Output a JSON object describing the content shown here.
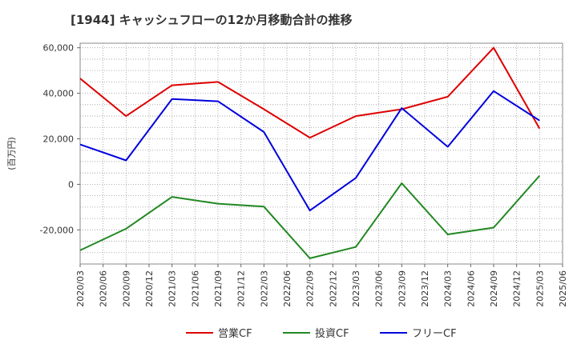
{
  "chart_data": {
    "type": "line",
    "title": "[1944]  キャッシュフローの12か月移動合計の推移",
    "ylabel": "(百万円)",
    "xlabel": "",
    "ylim": [
      -35000,
      62000
    ],
    "yticks": [
      60000,
      40000,
      20000,
      0,
      -20000
    ],
    "ytick_labels": [
      "60,000",
      "40,000",
      "20,000",
      "0",
      "-20,000"
    ],
    "grid": true,
    "legend_position": "bottom",
    "categories": [
      "2020/03",
      "2020/06",
      "2020/09",
      "2020/12",
      "2021/03",
      "2021/06",
      "2021/09",
      "2021/12",
      "2022/03",
      "2022/06",
      "2022/09",
      "2022/12",
      "2023/03",
      "2023/06",
      "2023/09",
      "2023/12",
      "2024/03",
      "2024/06",
      "2024/09",
      "2024/12",
      "2025/03",
      "2025/06"
    ],
    "series": [
      {
        "name": "営業CF",
        "color": "#dd0000",
        "values": [
          46500,
          null,
          30000,
          null,
          43500,
          null,
          45000,
          null,
          33000,
          null,
          20500,
          null,
          30000,
          null,
          33000,
          null,
          38500,
          null,
          60000,
          null,
          24500,
          null
        ]
      },
      {
        "name": "投資CF",
        "color": "#228822",
        "values": [
          -29000,
          null,
          -19500,
          null,
          -5500,
          null,
          -8500,
          null,
          -9800,
          null,
          -32500,
          null,
          -27500,
          null,
          500,
          null,
          -22000,
          null,
          -19000,
          null,
          3800,
          null
        ]
      },
      {
        "name": "フリーCF",
        "color": "#0000dd",
        "values": [
          17500,
          null,
          10500,
          null,
          37500,
          null,
          36500,
          null,
          23000,
          null,
          -11500,
          null,
          2800,
          null,
          33500,
          null,
          16500,
          null,
          41000,
          null,
          28000,
          null
        ]
      }
    ]
  }
}
